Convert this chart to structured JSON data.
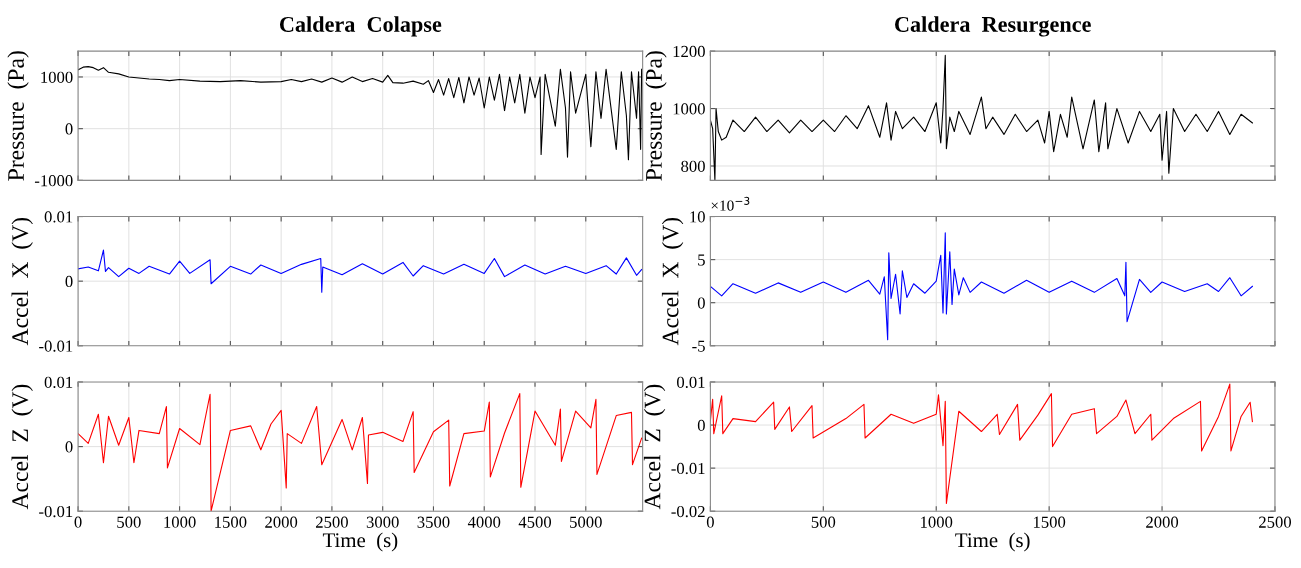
{
  "chart_data": [
    {
      "type": "line",
      "title": "Caldera  Colapse",
      "ylabel": "Pressure  (Pa)",
      "xlim": [
        0,
        5560
      ],
      "xticks": [
        0,
        500,
        1000,
        1500,
        2000,
        2500,
        3000,
        3500,
        4000,
        4500,
        5000
      ],
      "ylim": [
        -1000,
        1500
      ],
      "yticks": [
        -1000,
        0,
        1000
      ],
      "grid": true,
      "tick_labels": "y",
      "x": [
        0,
        50,
        100,
        150,
        200,
        250,
        300,
        400,
        500,
        600,
        700,
        800,
        900,
        1000,
        1200,
        1400,
        1600,
        1800,
        2000,
        2100,
        2200,
        2300,
        2400,
        2500,
        2600,
        2700,
        2800,
        2900,
        3000,
        3050,
        3100,
        3200,
        3300,
        3400,
        3450,
        3500,
        3550,
        3600,
        3650,
        3700,
        3750,
        3800,
        3850,
        3900,
        3950,
        4000,
        4050,
        4100,
        4150,
        4200,
        4250,
        4300,
        4350,
        4400,
        4450,
        4500,
        4550,
        4560,
        4600,
        4700,
        4750,
        4800,
        4820,
        4850,
        4900,
        5000,
        5050,
        5100,
        5150,
        5200,
        5300,
        5350,
        5400,
        5420,
        5450,
        5500,
        5520,
        5540,
        5550
      ],
      "series": [
        {
          "color": "#000000",
          "values": [
            1140,
            1190,
            1200,
            1180,
            1130,
            1180,
            1090,
            1060,
            1000,
            980,
            960,
            950,
            930,
            950,
            920,
            910,
            930,
            900,
            910,
            950,
            910,
            960,
            900,
            980,
            900,
            1000,
            910,
            970,
            900,
            1030,
            890,
            880,
            920,
            860,
            930,
            700,
            950,
            650,
            970,
            600,
            990,
            500,
            1000,
            650,
            980,
            400,
            1000,
            550,
            1050,
            350,
            1000,
            500,
            1050,
            300,
            1000,
            600,
            1000,
            -500,
            1050,
            50,
            1150,
            400,
            -550,
            1100,
            300,
            1050,
            -350,
            1100,
            200,
            1150,
            -400,
            1100,
            250,
            -600,
            1100,
            200,
            1100,
            -400,
            1150
          ]
        }
      ]
    },
    {
      "type": "line",
      "title": "Caldera  Resurgence",
      "ylabel": "Pressure  (Pa)",
      "xlim": [
        0,
        2500
      ],
      "xticks": [
        0,
        500,
        1000,
        1500,
        2000,
        2500
      ],
      "ylim": [
        750,
        1200
      ],
      "yticks": [
        800,
        1000,
        1200
      ],
      "grid": true,
      "tick_labels": "y",
      "x": [
        0,
        10,
        20,
        25,
        35,
        50,
        70,
        100,
        150,
        200,
        250,
        300,
        350,
        400,
        450,
        500,
        550,
        600,
        650,
        700,
        750,
        780,
        800,
        820,
        850,
        900,
        950,
        1000,
        1020,
        1030,
        1040,
        1045,
        1060,
        1080,
        1100,
        1150,
        1200,
        1220,
        1250,
        1300,
        1350,
        1400,
        1450,
        1480,
        1500,
        1520,
        1550,
        1580,
        1600,
        1650,
        1700,
        1720,
        1750,
        1760,
        1800,
        1850,
        1900,
        1950,
        1990,
        2000,
        2020,
        2030,
        2050,
        2100,
        2150,
        2200,
        2250,
        2300,
        2350,
        2400
      ],
      "series": [
        {
          "color": "#000000",
          "values": [
            960,
            930,
            750,
            1000,
            920,
            890,
            900,
            960,
            920,
            970,
            920,
            960,
            915,
            960,
            920,
            960,
            920,
            975,
            930,
            1010,
            900,
            1020,
            890,
            990,
            930,
            970,
            920,
            1020,
            880,
            1000,
            1185,
            860,
            970,
            920,
            990,
            910,
            1040,
            930,
            970,
            910,
            980,
            920,
            960,
            880,
            990,
            850,
            980,
            900,
            1040,
            860,
            1030,
            850,
            1020,
            860,
            1000,
            880,
            990,
            920,
            980,
            820,
            990,
            775,
            1000,
            920,
            980,
            920,
            990,
            910,
            980,
            950
          ]
        }
      ]
    },
    {
      "type": "line",
      "ylabel": "Accel  X  (V)",
      "xlim": [
        0,
        5560
      ],
      "xticks": [
        0,
        500,
        1000,
        1500,
        2000,
        2500,
        3000,
        3500,
        4000,
        4500,
        5000
      ],
      "ylim": [
        -0.01,
        0.01
      ],
      "yticks": [
        -0.01,
        0,
        0.01
      ],
      "grid": true,
      "tick_labels": "y",
      "x": [
        0,
        100,
        200,
        250,
        270,
        300,
        400,
        500,
        600,
        700,
        900,
        1000,
        1100,
        1300,
        1310,
        1500,
        1700,
        1800,
        2000,
        2200,
        2390,
        2400,
        2410,
        2600,
        2800,
        3000,
        3200,
        3300,
        3400,
        3600,
        3800,
        4000,
        4100,
        4200,
        4400,
        4600,
        4800,
        5000,
        5200,
        5300,
        5400,
        5500,
        5550
      ],
      "series": [
        {
          "color": "#0000ff",
          "values": [
            0.0019,
            0.0022,
            0.0016,
            0.0048,
            0.0015,
            0.0021,
            0.0007,
            0.002,
            0.0012,
            0.0023,
            0.0011,
            0.0031,
            0.0012,
            0.0033,
            -0.0004,
            0.0023,
            0.0011,
            0.0025,
            0.0012,
            0.0026,
            0.0035,
            -0.0017,
            0.0022,
            0.001,
            0.0027,
            0.0011,
            0.0029,
            0.0008,
            0.0024,
            0.0011,
            0.0026,
            0.0012,
            0.0035,
            0.0007,
            0.0025,
            0.0011,
            0.0023,
            0.0012,
            0.0024,
            0.0011,
            0.0036,
            0.0009,
            0.0018
          ]
        }
      ]
    },
    {
      "type": "line",
      "ylabel": "Accel  X  (V)",
      "annotations": [
        "×10$^{−3}$"
      ],
      "xlim": [
        0,
        2500
      ],
      "xticks": [
        0,
        500,
        1000,
        1500,
        2000,
        2500
      ],
      "ylim": [
        -5,
        10
      ],
      "yticks": [
        -5,
        0,
        5,
        10
      ],
      "grid": true,
      "tick_labels": "y",
      "x": [
        0,
        50,
        100,
        200,
        300,
        400,
        500,
        600,
        700,
        750,
        770,
        785,
        790,
        800,
        820,
        840,
        850,
        870,
        900,
        950,
        1000,
        1020,
        1030,
        1040,
        1045,
        1060,
        1070,
        1080,
        1100,
        1120,
        1150,
        1200,
        1300,
        1400,
        1500,
        1600,
        1700,
        1800,
        1835,
        1840,
        1845,
        1900,
        1950,
        2000,
        2100,
        2200,
        2250,
        2300,
        2350,
        2400
      ],
      "series": [
        {
          "color": "#0000ff",
          "values": [
            1.9,
            0.8,
            2.2,
            1.1,
            2.3,
            1.2,
            2.4,
            1.2,
            2.6,
            1.0,
            3.0,
            -4.3,
            5.8,
            0.5,
            3.3,
            -1.3,
            3.7,
            0.6,
            2.2,
            1.1,
            2.5,
            5.5,
            -1.2,
            8.1,
            -1.3,
            5.9,
            -0.2,
            3.9,
            0.9,
            2.9,
            1.2,
            2.4,
            1.1,
            2.6,
            1.2,
            2.5,
            1.2,
            2.8,
            0.8,
            4.7,
            -2.2,
            2.7,
            1.2,
            2.4,
            1.3,
            2.2,
            1.3,
            2.9,
            0.8,
            1.9
          ]
        }
      ]
    },
    {
      "type": "line",
      "ylabel": "Accel  Z  (V)",
      "xlabel": "Time  (s)",
      "xlim": [
        0,
        5560
      ],
      "xticks": [
        0,
        500,
        1000,
        1500,
        2000,
        2500,
        3000,
        3500,
        4000,
        4500,
        5000
      ],
      "ylim": [
        -0.01,
        0.01
      ],
      "yticks": [
        -0.01,
        0,
        0.01
      ],
      "grid": true,
      "x": [
        0,
        100,
        200,
        250,
        300,
        400,
        500,
        550,
        600,
        800,
        870,
        880,
        1000,
        1200,
        1300,
        1310,
        1500,
        1700,
        1800,
        1900,
        2000,
        2050,
        2060,
        2200,
        2350,
        2400,
        2600,
        2700,
        2800,
        2850,
        2860,
        3000,
        3200,
        3300,
        3310,
        3500,
        3650,
        3660,
        3800,
        4000,
        4050,
        4060,
        4200,
        4350,
        4360,
        4500,
        4700,
        4750,
        4760,
        4900,
        5050,
        5100,
        5110,
        5300,
        5450,
        5460,
        5550
      ],
      "series": [
        {
          "color": "#ff0000",
          "values": [
            0.002,
            0.0005,
            0.005,
            -0.0025,
            0.0047,
            0.0002,
            0.0045,
            -0.0025,
            0.0025,
            0.002,
            0.0062,
            -0.0033,
            0.0028,
            0.0003,
            0.0081,
            -0.01,
            0.0025,
            0.0032,
            -0.0005,
            0.0035,
            0.0056,
            -0.0064,
            0.002,
            0.0005,
            0.0062,
            -0.0028,
            0.0042,
            -0.0005,
            0.0045,
            -0.0057,
            0.0018,
            0.0022,
            0.0008,
            0.0054,
            -0.004,
            0.0023,
            0.0041,
            -0.0061,
            0.002,
            0.0024,
            0.0069,
            -0.0047,
            0.0021,
            0.0082,
            -0.0063,
            0.0055,
            0.0002,
            0.0058,
            -0.0023,
            0.0055,
            0.0029,
            0.0073,
            -0.0043,
            0.0048,
            0.0053,
            -0.0028,
            0.0013
          ]
        }
      ]
    },
    {
      "type": "line",
      "ylabel": "Accel  Z  (V)",
      "xlabel": "Time  (s)",
      "xlim": [
        0,
        2500
      ],
      "xticks": [
        0,
        500,
        1000,
        1500,
        2000,
        2500
      ],
      "ylim": [
        -0.02,
        0.01
      ],
      "yticks": [
        -0.02,
        -0.01,
        0,
        0.01
      ],
      "grid": true,
      "x": [
        0,
        10,
        15,
        50,
        55,
        100,
        200,
        280,
        285,
        350,
        360,
        450,
        455,
        600,
        680,
        685,
        800,
        900,
        1000,
        1010,
        1030,
        1040,
        1045,
        1100,
        1200,
        1270,
        1280,
        1360,
        1370,
        1450,
        1510,
        1515,
        1600,
        1700,
        1710,
        1800,
        1840,
        1880,
        1950,
        1955,
        2050,
        2170,
        2175,
        2250,
        2300,
        2305,
        2350,
        2390,
        2400
      ],
      "series": [
        {
          "color": "#ff0000",
          "values": [
            0.001,
            0.006,
            -0.002,
            0.0068,
            -0.002,
            0.0015,
            0.0008,
            0.0053,
            -0.001,
            0.0042,
            -0.0015,
            0.0045,
            -0.003,
            0.0015,
            0.0048,
            -0.003,
            0.0025,
            0.0004,
            0.0025,
            0.007,
            -0.0048,
            0.0055,
            -0.0182,
            0.0032,
            -0.0015,
            0.0025,
            -0.0022,
            0.0048,
            -0.0035,
            0.0023,
            0.0073,
            -0.005,
            0.0025,
            0.0038,
            -0.002,
            0.002,
            0.0058,
            -0.002,
            0.0025,
            -0.0035,
            0.0015,
            0.0055,
            -0.006,
            0.002,
            0.0095,
            -0.006,
            0.002,
            0.0053,
            0.0008
          ]
        }
      ]
    }
  ]
}
